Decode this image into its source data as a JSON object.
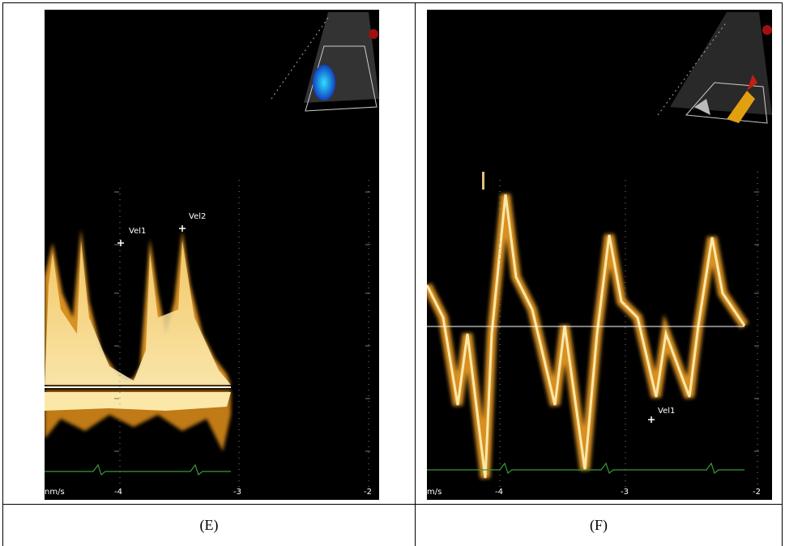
{
  "panels": [
    {
      "caption": "(E)",
      "markers": [
        "Vel1",
        "Vel2"
      ],
      "unit": "nm/s",
      "scale": [
        "-4",
        "-3",
        "-2"
      ]
    },
    {
      "caption": "(F)",
      "markers": [
        "Vel1"
      ],
      "unit": "m/s",
      "scale": [
        "-4",
        "-3",
        "-2"
      ]
    }
  ]
}
